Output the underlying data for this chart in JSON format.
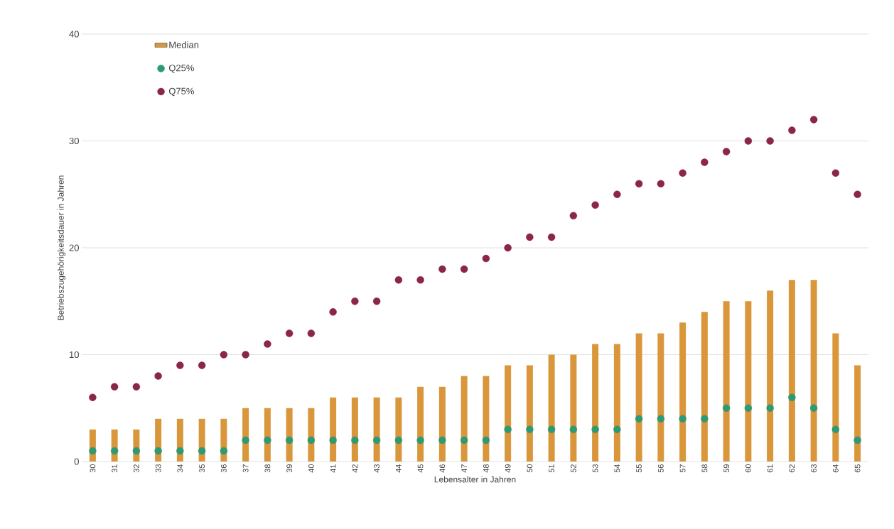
{
  "chart_data": {
    "type": "bar",
    "xlabel": "Lebensalter in Jahren",
    "ylabel": "Betriebszugehörigkeitsdauer in Jahren",
    "categories": [
      "30",
      "31",
      "32",
      "33",
      "34",
      "35",
      "36",
      "37",
      "38",
      "39",
      "40",
      "41",
      "42",
      "43",
      "44",
      "45",
      "46",
      "47",
      "48",
      "49",
      "50",
      "51",
      "52",
      "53",
      "54",
      "55",
      "56",
      "57",
      "58",
      "59",
      "60",
      "61",
      "62",
      "63",
      "64",
      "65"
    ],
    "series": [
      {
        "name": "Median",
        "color": "#d9963a",
        "values": [
          3,
          3,
          3,
          4,
          4,
          4,
          4,
          5,
          5,
          5,
          5,
          6,
          6,
          6,
          6,
          7,
          7,
          8,
          8,
          9,
          9,
          10,
          10,
          11,
          11,
          12,
          12,
          13,
          14,
          15,
          15,
          16,
          17,
          17,
          12,
          9
        ]
      },
      {
        "name": "Q25%",
        "type": "scatter",
        "color": "#2e9a74",
        "values": [
          1,
          1,
          1,
          1,
          1,
          1,
          1,
          2,
          2,
          2,
          2,
          2,
          2,
          2,
          2,
          2,
          2,
          2,
          2,
          3,
          3,
          3,
          3,
          3,
          3,
          4,
          4,
          4,
          4,
          5,
          5,
          5,
          6,
          5,
          3,
          2
        ]
      },
      {
        "name": "Q75%",
        "type": "scatter",
        "color": "#8b2648",
        "values": [
          6,
          7,
          7,
          8,
          9,
          9,
          10,
          10,
          11,
          12,
          12,
          14,
          15,
          15,
          17,
          17,
          18,
          18,
          19,
          20,
          21,
          21,
          23,
          24,
          25,
          26,
          26,
          27,
          28,
          29,
          30,
          30,
          31,
          32,
          27,
          25
        ]
      }
    ],
    "ylim": [
      0,
      40
    ],
    "yticks": [
      0,
      10,
      20,
      30,
      40
    ],
    "grid": "y",
    "legend": "top left",
    "marker": "circle"
  }
}
